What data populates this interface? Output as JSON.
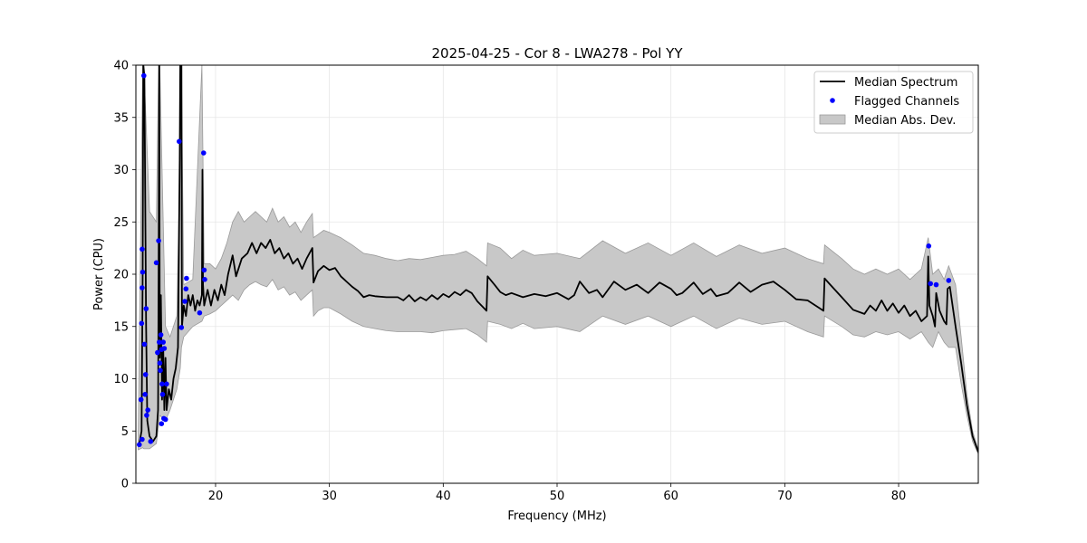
{
  "chart_data": {
    "type": "line",
    "title": "2025-04-25 - Cor 8 - LWA278 - Pol YY",
    "xlabel": "Frequency (MHz)",
    "ylabel": "Power (CPU)",
    "xlim": [
      13.0,
      87.0
    ],
    "ylim": [
      0,
      40
    ],
    "x_ticks": [
      20,
      30,
      40,
      50,
      60,
      70,
      80
    ],
    "x_tick_labels": [
      "20",
      "30",
      "40",
      "50",
      "60",
      "70",
      "80"
    ],
    "y_ticks": [
      0,
      5,
      10,
      15,
      20,
      25,
      30,
      35,
      40
    ],
    "y_tick_labels": [
      "0",
      "5",
      "10",
      "15",
      "20",
      "25",
      "30",
      "35",
      "40"
    ],
    "grid": true,
    "legend_position": "top-right",
    "colors": {
      "median": "#000000",
      "flagged": "#0000ff",
      "mad": "#c8c8c8",
      "mad_edge": "#9a9a9a"
    },
    "series": [
      {
        "name": "Median Spectrum",
        "kind": "line",
        "points": [
          [
            13.3,
            3.8
          ],
          [
            13.5,
            5
          ],
          [
            13.6,
            20
          ],
          [
            13.65,
            40
          ],
          [
            13.75,
            39
          ],
          [
            13.8,
            30
          ],
          [
            13.9,
            15
          ],
          [
            14.0,
            6
          ],
          [
            14.2,
            4.5
          ],
          [
            14.5,
            4.0
          ],
          [
            14.8,
            4.5
          ],
          [
            14.95,
            7
          ],
          [
            15.0,
            20
          ],
          [
            15.05,
            40
          ],
          [
            15.1,
            12
          ],
          [
            15.2,
            18
          ],
          [
            15.3,
            8
          ],
          [
            15.4,
            13
          ],
          [
            15.5,
            7
          ],
          [
            15.6,
            12
          ],
          [
            15.7,
            7
          ],
          [
            15.9,
            9
          ],
          [
            16.1,
            8
          ],
          [
            16.3,
            10
          ],
          [
            16.5,
            11
          ],
          [
            16.7,
            13
          ],
          [
            16.85,
            31
          ],
          [
            16.9,
            40
          ],
          [
            17.0,
            40
          ],
          [
            17.05,
            15
          ],
          [
            17.2,
            17
          ],
          [
            17.4,
            16
          ],
          [
            17.6,
            18
          ],
          [
            17.8,
            17
          ],
          [
            18.0,
            18
          ],
          [
            18.2,
            16.5
          ],
          [
            18.4,
            17.5
          ],
          [
            18.6,
            17
          ],
          [
            18.8,
            18
          ],
          [
            18.85,
            30
          ],
          [
            18.9,
            19
          ],
          [
            19.0,
            17
          ],
          [
            19.3,
            18.5
          ],
          [
            19.6,
            17
          ],
          [
            19.9,
            18.5
          ],
          [
            20.2,
            17.5
          ],
          [
            20.5,
            19
          ],
          [
            20.8,
            18
          ],
          [
            21.1,
            20
          ],
          [
            21.5,
            21.8
          ],
          [
            21.8,
            19.8
          ],
          [
            22.3,
            21.5
          ],
          [
            22.8,
            22
          ],
          [
            23.2,
            23
          ],
          [
            23.6,
            22
          ],
          [
            24.0,
            23
          ],
          [
            24.4,
            22.5
          ],
          [
            24.8,
            23.3
          ],
          [
            25.2,
            22
          ],
          [
            25.6,
            22.5
          ],
          [
            26.0,
            21.5
          ],
          [
            26.4,
            22
          ],
          [
            26.8,
            21
          ],
          [
            27.2,
            21.5
          ],
          [
            27.6,
            20.5
          ],
          [
            28.0,
            21.5
          ],
          [
            28.5,
            22.5
          ],
          [
            28.6,
            19.2
          ],
          [
            29.0,
            20.3
          ],
          [
            29.5,
            20.8
          ],
          [
            30.0,
            20.4
          ],
          [
            30.5,
            20.6
          ],
          [
            31.0,
            19.8
          ],
          [
            31.5,
            19.3
          ],
          [
            32.0,
            18.8
          ],
          [
            32.5,
            18.4
          ],
          [
            33.0,
            17.8
          ],
          [
            33.5,
            18
          ],
          [
            34.0,
            17.9
          ],
          [
            35.0,
            17.8
          ],
          [
            36.0,
            17.8
          ],
          [
            36.5,
            17.5
          ],
          [
            37.0,
            18
          ],
          [
            37.5,
            17.4
          ],
          [
            38.0,
            17.8
          ],
          [
            38.5,
            17.5
          ],
          [
            39.0,
            18
          ],
          [
            39.5,
            17.6
          ],
          [
            40.0,
            18.1
          ],
          [
            40.5,
            17.8
          ],
          [
            41.0,
            18.3
          ],
          [
            41.5,
            18
          ],
          [
            42.0,
            18.5
          ],
          [
            42.5,
            18.2
          ],
          [
            43.0,
            17.4
          ],
          [
            43.8,
            16.5
          ],
          [
            43.9,
            19.8
          ],
          [
            44.5,
            19
          ],
          [
            45.0,
            18.3
          ],
          [
            45.5,
            18
          ],
          [
            46.0,
            18.2
          ],
          [
            47.0,
            17.8
          ],
          [
            48.0,
            18.1
          ],
          [
            49.0,
            17.9
          ],
          [
            50.0,
            18.2
          ],
          [
            51.0,
            17.6
          ],
          [
            51.5,
            18
          ],
          [
            52.0,
            19.3
          ],
          [
            52.8,
            18.2
          ],
          [
            53.5,
            18.5
          ],
          [
            54.0,
            17.8
          ],
          [
            55.0,
            19.3
          ],
          [
            56.0,
            18.5
          ],
          [
            57.0,
            19
          ],
          [
            58.0,
            18.2
          ],
          [
            59.0,
            19.2
          ],
          [
            60.0,
            18.6
          ],
          [
            60.5,
            18
          ],
          [
            61.0,
            18.2
          ],
          [
            62.0,
            19.2
          ],
          [
            62.8,
            18.1
          ],
          [
            63.5,
            18.6
          ],
          [
            64.0,
            17.9
          ],
          [
            65.0,
            18.2
          ],
          [
            66.0,
            19.2
          ],
          [
            67.0,
            18.3
          ],
          [
            68.0,
            19
          ],
          [
            69.0,
            19.3
          ],
          [
            70.0,
            18.5
          ],
          [
            71.0,
            17.6
          ],
          [
            72.0,
            17.5
          ],
          [
            73.4,
            16.5
          ],
          [
            73.5,
            19.6
          ],
          [
            74.0,
            19
          ],
          [
            75.0,
            17.8
          ],
          [
            76.0,
            16.6
          ],
          [
            77.0,
            16.2
          ],
          [
            77.5,
            17
          ],
          [
            78.0,
            16.5
          ],
          [
            78.5,
            17.5
          ],
          [
            79.0,
            16.5
          ],
          [
            79.5,
            17.2
          ],
          [
            80.0,
            16.3
          ],
          [
            80.5,
            17
          ],
          [
            81.0,
            16
          ],
          [
            81.5,
            16.5
          ],
          [
            82.0,
            15.5
          ],
          [
            82.5,
            16
          ],
          [
            82.6,
            21.7
          ],
          [
            82.7,
            17
          ],
          [
            83.0,
            16
          ],
          [
            83.2,
            15
          ],
          [
            83.3,
            18.2
          ],
          [
            83.6,
            16.5
          ],
          [
            84.0,
            15.5
          ],
          [
            84.2,
            15.2
          ],
          [
            84.3,
            18.6
          ],
          [
            84.5,
            18.8
          ],
          [
            85.0,
            15
          ],
          [
            85.5,
            11.5
          ],
          [
            86.0,
            7.5
          ],
          [
            86.5,
            4.5
          ],
          [
            87.0,
            3.0
          ]
        ]
      },
      {
        "name": "Flagged Channels",
        "kind": "scatter",
        "points": [
          [
            13.3,
            3.7
          ],
          [
            13.45,
            8
          ],
          [
            13.5,
            15.3
          ],
          [
            13.55,
            18.7
          ],
          [
            13.55,
            22.4
          ],
          [
            13.6,
            20.2
          ],
          [
            13.7,
            39
          ],
          [
            13.75,
            13.3
          ],
          [
            13.8,
            8.5
          ],
          [
            13.85,
            10.4
          ],
          [
            13.9,
            16.7
          ],
          [
            13.95,
            6.5
          ],
          [
            13.55,
            4.2
          ],
          [
            14.05,
            7.0
          ],
          [
            14.3,
            4.0
          ],
          [
            14.8,
            21.1
          ],
          [
            14.9,
            12.5
          ],
          [
            15.0,
            23.2
          ],
          [
            15.05,
            13.5
          ],
          [
            15.1,
            11.5
          ],
          [
            15.15,
            10.8
          ],
          [
            15.2,
            14.2
          ],
          [
            15.25,
            12.8
          ],
          [
            15.3,
            9.5
          ],
          [
            15.35,
            8.5
          ],
          [
            15.4,
            13.5
          ],
          [
            15.5,
            12.9
          ],
          [
            15.6,
            6.1
          ],
          [
            15.7,
            9.5
          ],
          [
            15.25,
            5.7
          ],
          [
            15.45,
            6.2
          ],
          [
            16.8,
            32.7
          ],
          [
            17.0,
            14.9
          ],
          [
            17.3,
            17.4
          ],
          [
            17.4,
            18.6
          ],
          [
            17.45,
            19.6
          ],
          [
            18.6,
            16.3
          ],
          [
            18.95,
            31.6
          ],
          [
            19.0,
            20.4
          ],
          [
            19.05,
            19.5
          ],
          [
            82.65,
            22.7
          ],
          [
            82.8,
            19.1
          ],
          [
            83.3,
            19.0
          ],
          [
            84.4,
            19.4
          ]
        ]
      },
      {
        "name": "Median Abs. Dev.",
        "kind": "band",
        "x": [
          13.2,
          13.6,
          13.7,
          14.2,
          14.8,
          15.0,
          15.1,
          15.6,
          16.0,
          16.6,
          16.9,
          17.0,
          17.2,
          18.0,
          18.8,
          19.0,
          19.5,
          20.0,
          20.5,
          21.0,
          21.5,
          22.0,
          22.5,
          23.0,
          23.5,
          24.0,
          24.5,
          25.0,
          25.5,
          26.0,
          26.5,
          27.0,
          27.5,
          28.0,
          28.5,
          28.6,
          29.0,
          29.5,
          30.0,
          31.0,
          32.0,
          33.0,
          34.0,
          35.0,
          36.0,
          37.0,
          38.0,
          39.0,
          40.0,
          41.0,
          42.0,
          43.0,
          43.8,
          43.9,
          45.0,
          46.0,
          47.0,
          48.0,
          50.0,
          52.0,
          54.0,
          56.0,
          58.0,
          60.0,
          62.0,
          64.0,
          66.0,
          68.0,
          70.0,
          72.0,
          73.4,
          73.5,
          75.0,
          76.0,
          77.0,
          78.0,
          79.0,
          80.0,
          81.0,
          82.0,
          82.6,
          83.0,
          83.5,
          84.0,
          84.4,
          85.0,
          85.5,
          86.0,
          86.5,
          87.0
        ],
        "lower": [
          3.2,
          3.4,
          3.3,
          3.3,
          3.8,
          5.5,
          6.5,
          6.0,
          7.0,
          9.0,
          11.0,
          13.0,
          14.0,
          15.0,
          15.5,
          16.0,
          16.2,
          16.5,
          17.0,
          17.5,
          18.0,
          17.5,
          18.5,
          19.0,
          19.3,
          19.0,
          18.8,
          19.5,
          18.5,
          18.8,
          18.0,
          18.3,
          17.5,
          18.0,
          18.5,
          16.0,
          16.5,
          16.8,
          16.8,
          16.2,
          15.5,
          15.0,
          14.8,
          14.6,
          14.5,
          14.5,
          14.5,
          14.4,
          14.6,
          14.7,
          14.8,
          14.2,
          13.5,
          15.5,
          15.2,
          14.8,
          15.3,
          14.8,
          15.0,
          14.5,
          16.0,
          15.2,
          16.0,
          15.0,
          16.0,
          14.8,
          15.8,
          15.2,
          15.5,
          14.5,
          14.0,
          16.0,
          15.0,
          14.2,
          14.0,
          14.5,
          14.2,
          14.5,
          13.8,
          14.5,
          13.5,
          13.0,
          14.5,
          13.5,
          13.0,
          13.0,
          9.5,
          6.5,
          4.0,
          2.8
        ],
        "upper": [
          4.0,
          40.0,
          40.0,
          26.0,
          25.0,
          40.0,
          40.0,
          15.0,
          14.0,
          16.0,
          33.0,
          40.0,
          19.0,
          19.5,
          40.0,
          21.0,
          21.0,
          20.5,
          21.5,
          23.0,
          25.0,
          26.0,
          25.0,
          25.5,
          26.0,
          25.5,
          25.0,
          26.3,
          25.0,
          25.5,
          24.5,
          25.0,
          24.0,
          25.0,
          25.8,
          23.5,
          23.8,
          24.2,
          24.0,
          23.5,
          22.8,
          22.0,
          21.8,
          21.5,
          21.3,
          21.5,
          21.4,
          21.6,
          21.8,
          21.9,
          22.2,
          21.5,
          20.8,
          23.0,
          22.5,
          21.5,
          22.3,
          21.8,
          22.0,
          21.5,
          23.2,
          22.0,
          23.0,
          21.8,
          23.0,
          21.7,
          22.8,
          22.0,
          22.5,
          21.5,
          21.0,
          22.8,
          21.5,
          20.5,
          20.0,
          20.5,
          20.0,
          20.5,
          19.5,
          20.5,
          23.5,
          20.0,
          20.5,
          19.5,
          20.8,
          19.0,
          14.0,
          8.5,
          5.0,
          3.2
        ]
      }
    ],
    "legend": [
      "Median Spectrum",
      "Flagged Channels",
      "Median Abs. Dev."
    ]
  }
}
